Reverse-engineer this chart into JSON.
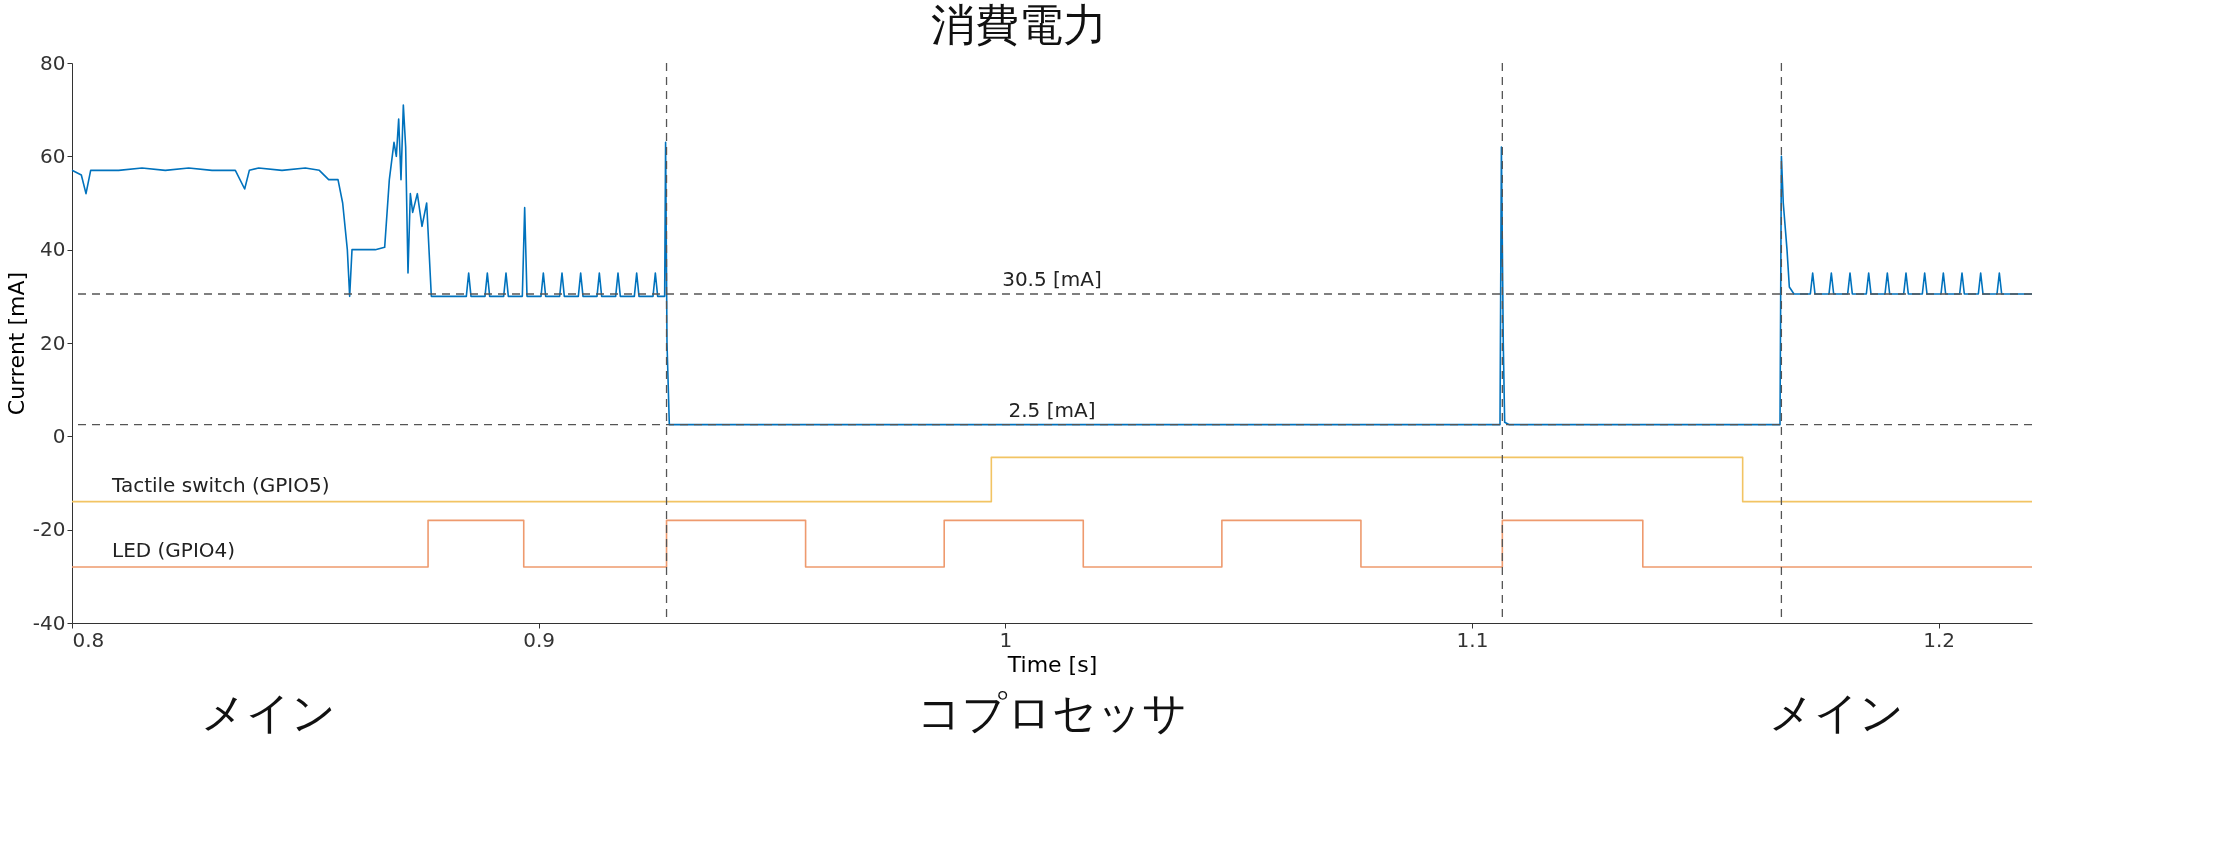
{
  "chart_data": {
    "type": "line",
    "title": "消費電力",
    "xlabel": "Time [s]",
    "ylabel": "Current [mA]",
    "xlim": [
      0.8,
      1.22
    ],
    "xticks": [
      0.8,
      0.9,
      1,
      1.1,
      1.2
    ],
    "ylim": [
      -40,
      80
    ],
    "yticks": [
      -40,
      -20,
      0,
      20,
      40,
      60,
      80
    ],
    "grid": false,
    "series": [
      {
        "type": "line",
        "color": "#0072bd",
        "x": [
          0.8,
          0.802,
          0.803,
          0.804,
          0.807,
          0.81,
          0.815,
          0.82,
          0.825,
          0.83,
          0.835,
          0.837,
          0.838,
          0.84,
          0.845,
          0.85,
          0.853,
          0.855,
          0.857,
          0.858,
          0.859,
          0.8595,
          0.86,
          0.865,
          0.867,
          0.868,
          0.869,
          0.8695,
          0.87,
          0.8705,
          0.871,
          0.8715,
          0.872,
          0.8725,
          0.873,
          0.874,
          0.875,
          0.876,
          0.8765,
          0.877,
          0.88,
          0.8845,
          0.885,
          0.8855,
          0.8885,
          0.889,
          0.8895,
          0.8925,
          0.893,
          0.8935,
          0.8965,
          0.897,
          0.8975,
          0.9005,
          0.901,
          0.9015,
          0.9045,
          0.905,
          0.9055,
          0.9085,
          0.909,
          0.9095,
          0.9125,
          0.913,
          0.9135,
          0.9165,
          0.917,
          0.9175,
          0.9205,
          0.921,
          0.9215,
          0.9245,
          0.925,
          0.9255,
          0.927,
          0.9272,
          0.9275,
          0.928,
          0.96,
          1.0,
          1.05,
          1.106,
          1.1063,
          1.1067,
          1.107,
          1.108,
          1.14,
          1.166,
          1.1663,
          1.1667,
          1.1675,
          1.168,
          1.169,
          1.1725,
          1.173,
          1.1735,
          1.1765,
          1.177,
          1.1775,
          1.1805,
          1.181,
          1.1815,
          1.1845,
          1.185,
          1.1855,
          1.1885,
          1.189,
          1.1895,
          1.1925,
          1.193,
          1.1935,
          1.1965,
          1.197,
          1.1975,
          1.2005,
          1.201,
          1.2015,
          1.2045,
          1.205,
          1.2055,
          1.2085,
          1.209,
          1.2095,
          1.2125,
          1.213,
          1.2135,
          1.22
        ],
        "values": [
          57,
          56,
          52,
          57,
          57,
          57,
          57.5,
          57,
          57.5,
          57,
          57,
          53,
          57,
          57.5,
          57,
          57.5,
          57,
          55,
          55,
          50,
          40,
          30,
          40,
          40,
          40.5,
          55,
          63,
          60,
          68,
          55,
          71,
          62,
          35,
          52,
          48,
          52,
          45,
          50,
          40,
          30,
          30,
          30,
          35,
          30,
          30,
          35,
          30,
          30,
          35,
          30,
          30,
          49,
          30,
          30,
          35,
          30,
          30,
          35,
          30,
          30,
          35,
          30,
          30,
          35,
          30,
          30,
          35,
          30,
          30,
          35,
          30,
          30,
          35,
          30,
          30,
          63,
          20,
          2.5,
          2.5,
          2.5,
          2.5,
          2.5,
          62,
          20,
          3,
          2.5,
          2.5,
          2.5,
          60,
          50,
          40,
          32,
          30.5,
          30.5,
          35,
          30.5,
          30.5,
          35,
          30.5,
          30.5,
          35,
          30.5,
          30.5,
          35,
          30.5,
          30.5,
          35,
          30.5,
          30.5,
          35,
          30.5,
          30.5,
          35,
          30.5,
          30.5,
          35,
          30.5,
          30.5,
          35,
          30.5,
          30.5,
          35,
          30.5,
          30.5,
          35,
          30.5,
          30.5
        ]
      },
      {
        "type": "step",
        "name": "Tactile switch (GPIO5)",
        "color": "#f2c463",
        "x": [
          0.8,
          0.997,
          1.158,
          1.22
        ],
        "values": [
          -14,
          -4.5,
          -14,
          -14
        ]
      },
      {
        "type": "step",
        "name": "LED (GPIO4)",
        "color": "#ee9a6e",
        "x": [
          0.8,
          0.8763,
          0.8968,
          0.9274,
          0.9572,
          0.9869,
          1.0167,
          1.0464,
          1.0762,
          1.1065,
          1.1366,
          1.22
        ],
        "values": [
          -28,
          -18,
          -28,
          -18,
          -28,
          -18,
          -28,
          -18,
          -28,
          -18,
          -28,
          -28
        ]
      }
    ],
    "ref_lines": [
      {
        "axis": "y",
        "value": 30.5,
        "label": "30.5 [mA]",
        "color": "#555555",
        "line_style": "dashed"
      },
      {
        "axis": "y",
        "value": 2.5,
        "label": "2.5 [mA]",
        "color": "#555555",
        "line_style": "dashed"
      },
      {
        "axis": "x",
        "value": 0.9274,
        "color": "#555555",
        "line_style": "dashed"
      },
      {
        "axis": "x",
        "value": 1.1065,
        "color": "#555555",
        "line_style": "dashed"
      },
      {
        "axis": "x",
        "value": 1.1663,
        "color": "#555555",
        "line_style": "dashed"
      }
    ],
    "annotations": [
      "メイン",
      "コプロセッサ",
      "メイン"
    ]
  }
}
